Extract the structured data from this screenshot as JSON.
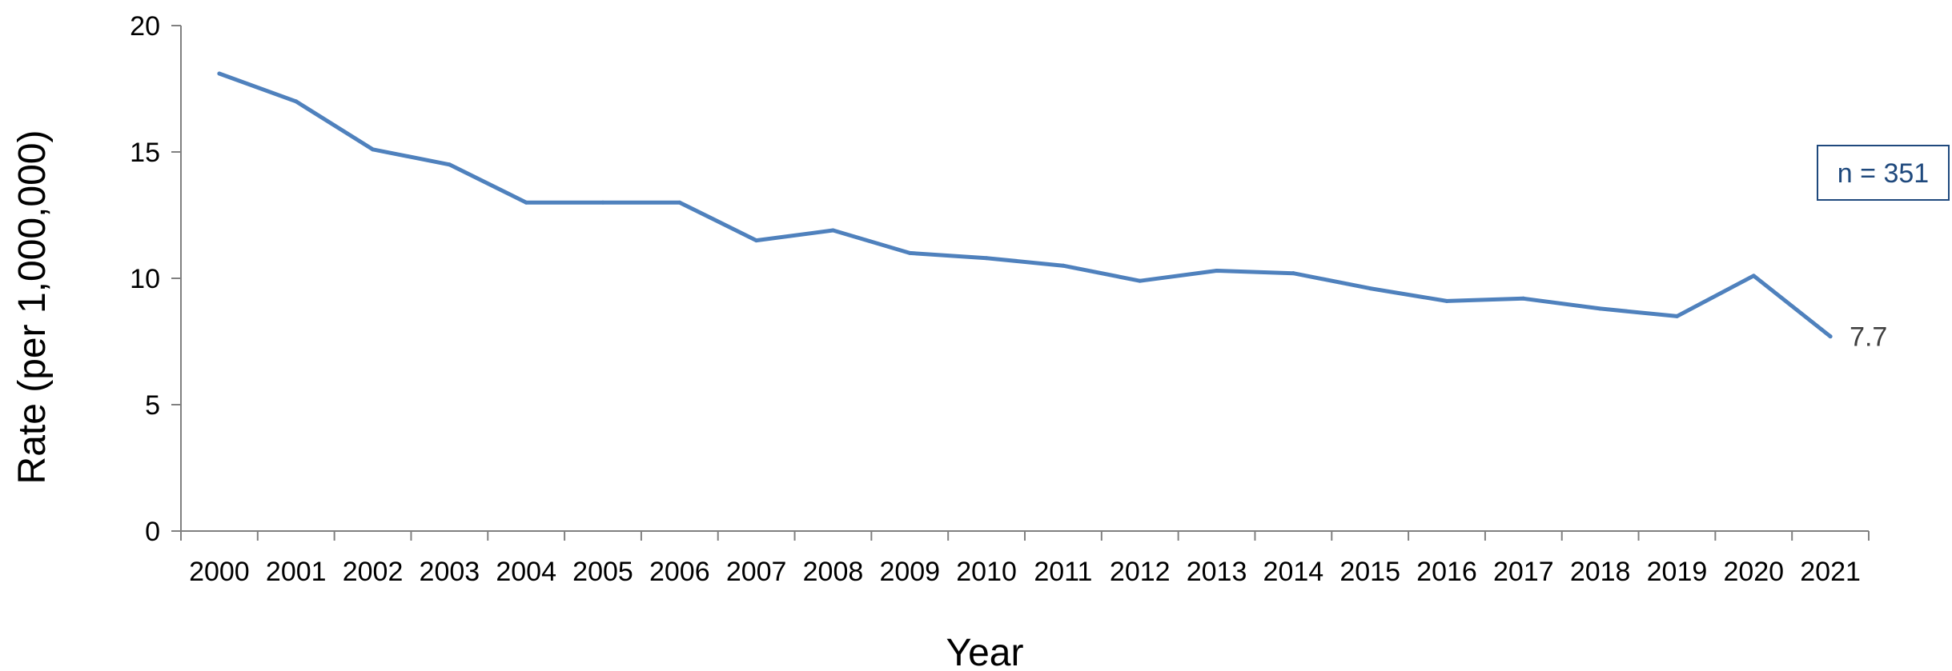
{
  "chart_data": {
    "type": "line",
    "xlabel": "Year",
    "ylabel": "Rate (per 1,000,000)",
    "ylim": [
      0,
      20
    ],
    "yticks": [
      "0",
      "5",
      "10",
      "15",
      "20"
    ],
    "categories": [
      "2000",
      "2001",
      "2002",
      "2003",
      "2004",
      "2005",
      "2006",
      "2007",
      "2008",
      "2009",
      "2010",
      "2011",
      "2012",
      "2013",
      "2014",
      "2015",
      "2016",
      "2017",
      "2018",
      "2019",
      "2020",
      "2021"
    ],
    "series": [
      {
        "values": [
          18.1,
          17.0,
          15.1,
          14.5,
          13.0,
          13.0,
          13.0,
          11.5,
          11.9,
          11.0,
          10.8,
          10.5,
          9.9,
          10.3,
          10.2,
          9.6,
          9.1,
          9.2,
          8.8,
          8.5,
          10.1,
          7.7
        ],
        "color": "#4F81BD"
      }
    ],
    "end_label": "7.7",
    "annotation": "n = 351",
    "grid": false,
    "legend": "none"
  }
}
